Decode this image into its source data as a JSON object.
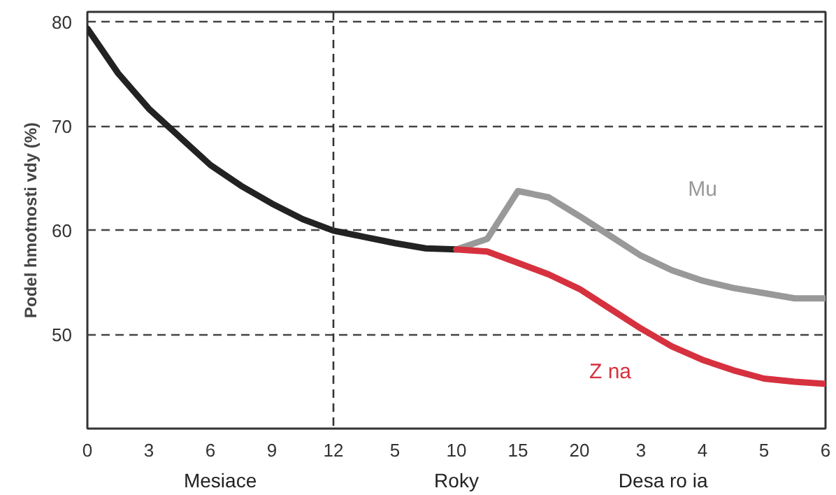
{
  "chart_data": {
    "type": "line",
    "ylabel": "Podel hmotnosti vdy (%)",
    "categories": [
      "0",
      null,
      "3",
      null,
      "6",
      null,
      "9",
      null,
      "12",
      null,
      "5",
      null,
      "10",
      null,
      "15",
      null,
      "20",
      null,
      "3",
      null,
      "4",
      null,
      "5",
      null,
      "6"
    ],
    "ylim": [
      41,
      81
    ],
    "yticks": [
      50,
      60,
      70,
      80
    ],
    "grid": "y",
    "ref_lines": [
      {
        "axis": "x",
        "value": "12",
        "line_style": "dashed",
        "color": "#333333"
      }
    ],
    "annotations": [
      "Mesiace",
      "Roky",
      "Desa ro ia"
    ],
    "series": [
      {
        "color": "#222222",
        "values": [
          79.4,
          75.1,
          71.7,
          69,
          66.3,
          64.3,
          62.6,
          61.1,
          60,
          59.4,
          58.8,
          58.3,
          58.2,
          null,
          null,
          null,
          null,
          null,
          null,
          null,
          null,
          null,
          null,
          null,
          null
        ]
      },
      {
        "name": "Mu",
        "color": "#999999",
        "values": [
          null,
          null,
          null,
          null,
          null,
          null,
          null,
          null,
          null,
          null,
          null,
          null,
          58.2,
          59.2,
          63.8,
          63.2,
          61.4,
          59.5,
          57.6,
          56.2,
          55.2,
          54.5,
          54,
          53.5,
          53.5
        ]
      },
      {
        "name": "Z na",
        "color": "#d6313f",
        "values": [
          null,
          null,
          null,
          null,
          null,
          null,
          null,
          null,
          null,
          null,
          null,
          null,
          58.2,
          58,
          56.9,
          55.8,
          54.4,
          52.5,
          50.6,
          48.9,
          47.6,
          46.6,
          45.8,
          45.5,
          45.3
        ]
      }
    ]
  }
}
